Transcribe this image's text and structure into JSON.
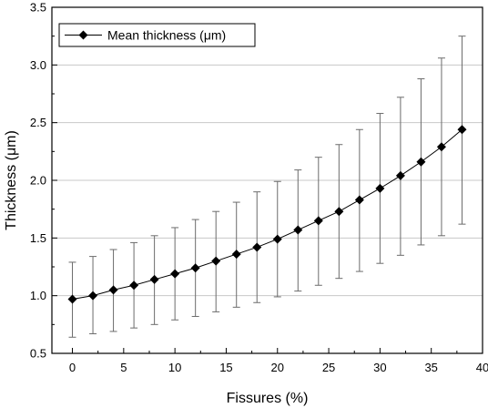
{
  "chart_data": {
    "type": "line",
    "xlabel": "Fissures (%)",
    "ylabel": "Thickness (μm)",
    "xlim": [
      -2,
      40
    ],
    "ylim": [
      0.5,
      3.5
    ],
    "xticks": [
      0,
      5,
      10,
      15,
      20,
      25,
      30,
      35,
      40
    ],
    "yticks": [
      0.5,
      1.0,
      1.5,
      2.0,
      2.5,
      3.0,
      3.5
    ],
    "xtick_labels": [
      "0",
      "5",
      "10",
      "15",
      "20",
      "25",
      "30",
      "35",
      "40"
    ],
    "ytick_labels": [
      "0.5",
      "1.0",
      "1.5",
      "2.0",
      "2.5",
      "3.0",
      "3.5"
    ],
    "grid": "horizontal",
    "legend_position": "top-left",
    "marker": "diamond",
    "colors": {
      "line": "#000000",
      "marker": "#000000",
      "errorbar": "#6b6b6b",
      "grid": "#c8c8c8"
    },
    "series": [
      {
        "name": "Mean thickness (μm)",
        "x": [
          0,
          2,
          4,
          6,
          8,
          10,
          12,
          14,
          16,
          18,
          20,
          22,
          24,
          26,
          28,
          30,
          32,
          34,
          36,
          38
        ],
        "y": [
          0.97,
          1.0,
          1.05,
          1.09,
          1.14,
          1.19,
          1.24,
          1.3,
          1.36,
          1.42,
          1.49,
          1.57,
          1.65,
          1.73,
          1.83,
          1.93,
          2.04,
          2.16,
          2.29,
          2.44
        ],
        "error_low": [
          0.64,
          0.67,
          0.69,
          0.72,
          0.75,
          0.79,
          0.82,
          0.86,
          0.9,
          0.94,
          0.99,
          1.04,
          1.09,
          1.15,
          1.21,
          1.28,
          1.35,
          1.44,
          1.52,
          1.62
        ],
        "error_high": [
          1.29,
          1.34,
          1.4,
          1.46,
          1.52,
          1.59,
          1.66,
          1.73,
          1.81,
          1.9,
          1.99,
          2.09,
          2.2,
          2.31,
          2.44,
          2.58,
          2.72,
          2.88,
          3.06,
          3.25
        ]
      }
    ]
  }
}
